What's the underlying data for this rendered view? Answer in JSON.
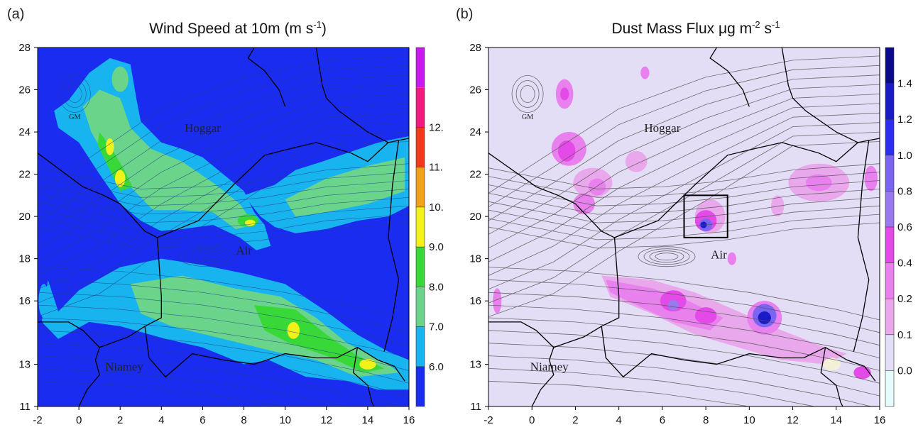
{
  "chart_data": [
    {
      "type": "heatmap",
      "panel_label": "(a)",
      "title": "Wind Speed at 10m (m s",
      "title_sup": "-1",
      "title_end": ")",
      "xlim": [
        -2,
        16
      ],
      "ylim": [
        11,
        28
      ],
      "x_ticks": [
        -2,
        0,
        2,
        4,
        6,
        8,
        10,
        12,
        14,
        16
      ],
      "y_ticks": [
        11,
        13,
        16,
        18,
        20,
        22,
        24,
        26,
        28
      ],
      "colorbar": {
        "levels": [
          "6.0",
          "7.0",
          "8.0",
          "9.0",
          "10.",
          "11.",
          "12."
        ],
        "colors": [
          "#1a2cf0",
          "#18b4f0",
          "#6ad48a",
          "#38d838",
          "#f2f21a",
          "#f2a01a",
          "#f23a1a",
          "#f21a80",
          "#c81af0"
        ]
      },
      "places": [
        {
          "name": "Hoggar",
          "x": 6.0,
          "y": 24.0
        },
        {
          "name": "Air",
          "x": 8.0,
          "y": 18.2
        },
        {
          "name": "Niamey",
          "x": 2.2,
          "y": 12.7
        },
        {
          "name": "GM",
          "x": -0.2,
          "y": 24.6
        }
      ],
      "wind_bands_ms": [
        {
          "region": "northwest band Hoggar to Air",
          "x_range": [
            -1,
            8
          ],
          "y_range": [
            19.5,
            26
          ],
          "value_range": [
            7,
            10
          ]
        },
        {
          "region": "east band north of Air",
          "x_range": [
            8,
            16
          ],
          "y_range": [
            19,
            23.5
          ],
          "value_range": [
            7,
            8
          ]
        },
        {
          "region": "southern band",
          "x_range": [
            2,
            16
          ],
          "y_range": [
            12,
            18
          ],
          "value_range": [
            7,
            10
          ]
        }
      ]
    },
    {
      "type": "heatmap",
      "panel_label": "(b)",
      "title": "Dust Mass Flux μg m",
      "title_sup1": "-2",
      "title_mid": " s",
      "title_sup2": "-1",
      "xlim": [
        -2,
        16
      ],
      "ylim": [
        11,
        28
      ],
      "x_ticks": [
        -2,
        0,
        2,
        4,
        6,
        8,
        10,
        12,
        14,
        16
      ],
      "y_ticks": [
        11,
        13,
        16,
        18,
        20,
        22,
        24,
        26,
        28
      ],
      "colorbar": {
        "levels": [
          "0.0",
          "0.1",
          "0.2",
          "0.4",
          "0.6",
          "0.8",
          "1.0",
          "1.2",
          "1.4"
        ],
        "colors": [
          "#e6fbfb",
          "#e4ddf6",
          "#eaa8ec",
          "#e880ee",
          "#e44ae8",
          "#9a78ee",
          "#7a64f2",
          "#2c2cf2",
          "#1a1ac6",
          "#0a0a8c"
        ]
      },
      "places": [
        {
          "name": "Hoggar",
          "x": 6.0,
          "y": 24.0
        },
        {
          "name": "Air",
          "x": 8.6,
          "y": 18.0
        },
        {
          "name": "Niamey",
          "x": 0.8,
          "y": 12.7
        },
        {
          "name": "GM",
          "x": -0.2,
          "y": 24.6
        }
      ],
      "highlight_box": {
        "x_range": [
          7,
          9
        ],
        "y_range": [
          19,
          21
        ]
      },
      "dust_sources": [
        {
          "x": 1.5,
          "y": 26,
          "value": 0.4
        },
        {
          "x": 1.5,
          "y": 23,
          "value": 0.6
        },
        {
          "x": 3.0,
          "y": 21.5,
          "value": 0.4
        },
        {
          "x": 8.0,
          "y": 19.8,
          "value": 1.2
        },
        {
          "x": 13.5,
          "y": 21.5,
          "value": 0.3
        },
        {
          "x": 6.5,
          "y": 16,
          "value": 0.6
        },
        {
          "x": 10.7,
          "y": 15.3,
          "value": 1.2
        }
      ]
    }
  ]
}
